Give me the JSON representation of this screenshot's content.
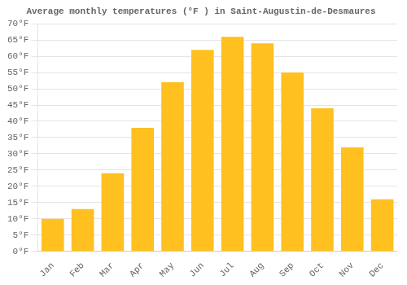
{
  "chart_data": {
    "type": "bar",
    "title": "Average monthly temperatures (°F ) in Saint-Augustin-de-Desmaures",
    "categories": [
      "Jan",
      "Feb",
      "Mar",
      "Apr",
      "May",
      "Jun",
      "Jul",
      "Aug",
      "Sep",
      "Oct",
      "Nov",
      "Dec"
    ],
    "values": [
      10,
      13,
      24,
      38,
      52,
      62,
      66,
      64,
      55,
      44,
      32,
      16
    ],
    "color": "#FFC020",
    "ylim": [
      0,
      70
    ],
    "yticks": [
      {
        "value": 0,
        "label": "0°F"
      },
      {
        "value": 5,
        "label": "5°F"
      },
      {
        "value": 10,
        "label": "10°F"
      },
      {
        "value": 15,
        "label": "15°F"
      },
      {
        "value": 20,
        "label": "20°F"
      },
      {
        "value": 25,
        "label": "25°F"
      },
      {
        "value": 30,
        "label": "30°F"
      },
      {
        "value": 35,
        "label": "35°F"
      },
      {
        "value": 40,
        "label": "40°F"
      },
      {
        "value": 45,
        "label": "45°F"
      },
      {
        "value": 50,
        "label": "50°F"
      },
      {
        "value": 55,
        "label": "55°F"
      },
      {
        "value": 60,
        "label": "60°F"
      },
      {
        "value": 65,
        "label": "65°F"
      },
      {
        "value": 70,
        "label": "70°F"
      }
    ],
    "grid": true
  }
}
